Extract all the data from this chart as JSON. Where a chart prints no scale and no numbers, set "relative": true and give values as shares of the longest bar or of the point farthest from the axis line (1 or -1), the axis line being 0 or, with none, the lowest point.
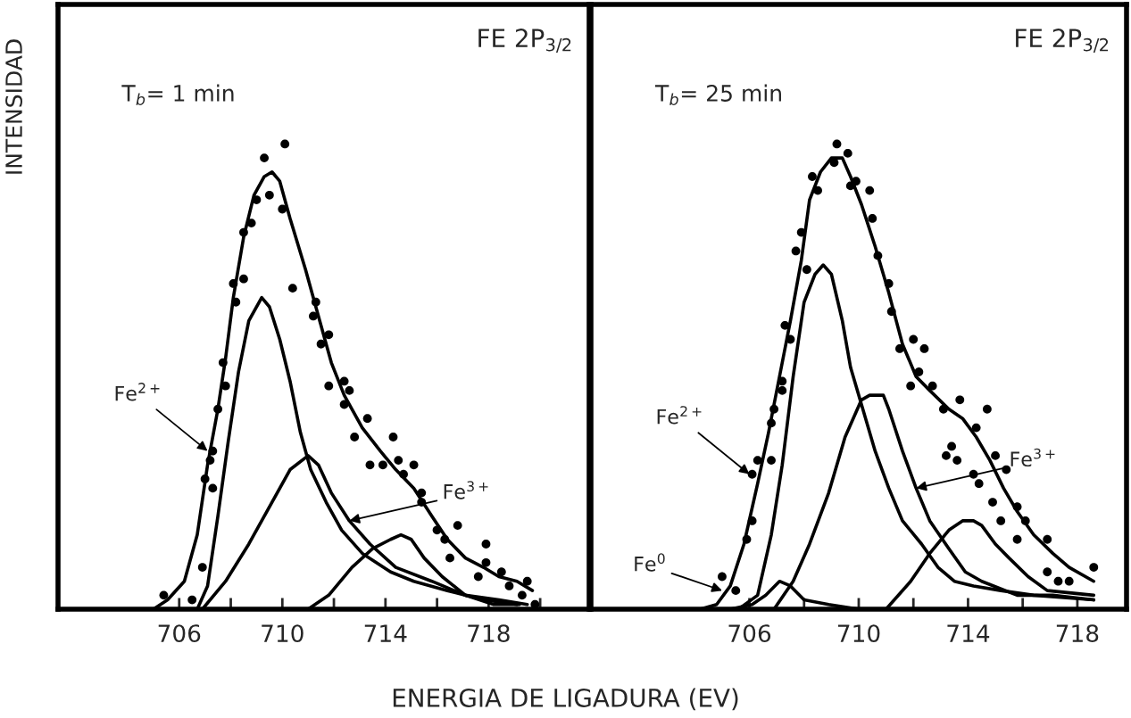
{
  "chart_data": [
    {
      "type": "line",
      "title": "FE 2P$_{3/2}$",
      "xlabel": "ENERGIA DE LIGADURA (EV)",
      "ylabel": "INTENSIDAD",
      "relative": true,
      "xlim": [
        701.3,
        721.9
      ],
      "xticks": [
        706,
        {
          "value": 708,
          "label": null
        },
        710,
        {
          "value": 712,
          "label": null
        },
        714,
        {
          "value": 716,
          "label": null
        },
        718,
        {
          "value": 720,
          "label": null
        }
      ],
      "annotations": [
        "T$_{b}$= 1 min",
        {
          "text": "Fe$^{2+}$",
          "x": 707.1,
          "y": 0.34
        },
        {
          "text": "Fe$^{3+}$",
          "x": 712.6,
          "y": 0.19
        }
      ],
      "series": [
        {
          "type": "scatter",
          "marker": "circle",
          "color": "#000000",
          "x": [
            705.4,
            706.5,
            706.9,
            707.0,
            707.3,
            707.2,
            707.3,
            707.5,
            707.7,
            707.8,
            708.1,
            708.2,
            708.5,
            708.5,
            708.8,
            709.0,
            709.5,
            709.3,
            710.1,
            710.0,
            710.4,
            711.3,
            711.2,
            711.5,
            711.8,
            711.8,
            712.4,
            712.6,
            712.4,
            712.8,
            713.3,
            713.4,
            713.9,
            714.3,
            714.5,
            714.7,
            715.1,
            715.4,
            715.4,
            716.0,
            716.3,
            716.8,
            716.5,
            717.6,
            717.9,
            717.9,
            718.5,
            718.8,
            719.5,
            719.3,
            719.8
          ],
          "values": [
            0.03,
            0.02,
            0.09,
            0.28,
            0.26,
            0.32,
            0.34,
            0.43,
            0.53,
            0.48,
            0.7,
            0.66,
            0.71,
            0.81,
            0.83,
            0.88,
            0.89,
            0.97,
            1.0,
            0.86,
            0.69,
            0.66,
            0.63,
            0.57,
            0.59,
            0.48,
            0.49,
            0.47,
            0.44,
            0.37,
            0.41,
            0.31,
            0.31,
            0.37,
            0.32,
            0.29,
            0.31,
            0.25,
            0.23,
            0.17,
            0.15,
            0.18,
            0.11,
            0.07,
            0.14,
            0.1,
            0.08,
            0.05,
            0.06,
            0.03,
            0.01
          ]
        },
        {
          "color": "#000000",
          "x": [
            705.0,
            705.55,
            706.2,
            706.7,
            707.1,
            707.5,
            707.8,
            708.1,
            708.5,
            708.9,
            709.3,
            709.6,
            709.9,
            710.3,
            710.9,
            711.4,
            711.9,
            712.4,
            713.1,
            713.8,
            714.4,
            715.1,
            715.8,
            716.4,
            717.1,
            717.8,
            718.4,
            719.1,
            719.7
          ],
          "values": [
            0,
            0.02,
            0.06,
            0.16,
            0.31,
            0.43,
            0.54,
            0.67,
            0.8,
            0.89,
            0.93,
            0.94,
            0.92,
            0.84,
            0.73,
            0.63,
            0.53,
            0.46,
            0.39,
            0.34,
            0.3,
            0.26,
            0.2,
            0.15,
            0.11,
            0.09,
            0.07,
            0.06,
            0.04
          ]
        },
        {
          "color": "#000000",
          "x": [
            706.7,
            707.1,
            707.5,
            707.9,
            708.3,
            708.7,
            709.2,
            709.5,
            709.9,
            710.3,
            710.7,
            711.1,
            711.7,
            712.3,
            713.1,
            714.2,
            715.1,
            716.4,
            717.8,
            719.1
          ],
          "values": [
            0,
            0.05,
            0.2,
            0.36,
            0.51,
            0.62,
            0.67,
            0.65,
            0.58,
            0.49,
            0.38,
            0.3,
            0.23,
            0.17,
            0.12,
            0.08,
            0.06,
            0.04,
            0.02,
            0.01
          ]
        },
        {
          "color": "#000000",
          "x": [
            706.9,
            707.8,
            708.7,
            709.7,
            710.3,
            711.0,
            711.4,
            711.9,
            712.6,
            713.4,
            714.4,
            715.8,
            717.1,
            718.4,
            719.5
          ],
          "values": [
            0,
            0.06,
            0.14,
            0.24,
            0.3,
            0.33,
            0.31,
            0.25,
            0.19,
            0.14,
            0.09,
            0.06,
            0.03,
            0.02,
            0.01
          ]
        },
        {
          "color": "#000000",
          "x": [
            711.0,
            711.8,
            712.7,
            713.5,
            714.2,
            714.6,
            715.0,
            715.5,
            716.2,
            717.1,
            718.2,
            719.2
          ],
          "values": [
            0,
            0.03,
            0.09,
            0.13,
            0.15,
            0.16,
            0.15,
            0.11,
            0.07,
            0.03,
            0.01,
            0.01
          ]
        }
      ]
    },
    {
      "type": "line",
      "title": "FE 2P$_{3/2}$",
      "relative": true,
      "xlim": [
        700.2,
        719.8
      ],
      "xticks": [
        706,
        {
          "value": 708,
          "label": null
        },
        710,
        {
          "value": 712,
          "label": null
        },
        714,
        {
          "value": 716,
          "label": null
        },
        718
      ],
      "annotations": [
        "T$_{b}$= 25 min",
        {
          "text": "Fe$^{2+}$",
          "x": 706.0,
          "y": 0.29
        },
        {
          "text": "Fe$^{3+}$",
          "x": 712.1,
          "y": 0.26
        },
        {
          "text": "Fe$^{0}$",
          "x": 705.0,
          "y": 0.04
        }
      ],
      "series": [
        {
          "type": "scatter",
          "marker": "circle",
          "color": "#000000",
          "x": [
            705.0,
            705.5,
            705.9,
            706.1,
            706.1,
            706.3,
            706.8,
            706.8,
            706.9,
            707.2,
            707.2,
            707.5,
            707.3,
            707.7,
            707.9,
            708.1,
            708.3,
            708.5,
            709.1,
            709.2,
            709.6,
            709.7,
            709.9,
            710.4,
            710.5,
            710.7,
            711.1,
            711.2,
            711.5,
            712.0,
            712.4,
            711.9,
            712.2,
            712.7,
            713.1,
            713.7,
            714.7,
            714.3,
            713.4,
            713.2,
            713.6,
            714.2,
            714.4,
            715.0,
            715.4,
            714.9,
            715.2,
            715.8,
            716.1,
            715.8,
            716.9,
            716.9,
            717.3,
            717.7,
            718.6
          ],
          "values": [
            0.07,
            0.04,
            0.15,
            0.19,
            0.29,
            0.32,
            0.32,
            0.4,
            0.43,
            0.47,
            0.49,
            0.58,
            0.61,
            0.77,
            0.81,
            0.73,
            0.93,
            0.9,
            0.96,
            1.0,
            0.98,
            0.91,
            0.92,
            0.9,
            0.84,
            0.76,
            0.7,
            0.64,
            0.56,
            0.58,
            0.56,
            0.48,
            0.51,
            0.48,
            0.43,
            0.45,
            0.43,
            0.39,
            0.35,
            0.33,
            0.32,
            0.29,
            0.27,
            0.33,
            0.3,
            0.23,
            0.19,
            0.22,
            0.19,
            0.15,
            0.15,
            0.08,
            0.06,
            0.06,
            0.09
          ]
        },
        {
          "color": "#000000",
          "x": [
            704.2,
            704.8,
            705.3,
            705.8,
            706.3,
            706.7,
            707.1,
            707.5,
            707.9,
            708.2,
            708.6,
            709.0,
            709.4,
            709.7,
            710.1,
            710.6,
            711.1,
            711.6,
            712.1,
            712.6,
            713.3,
            713.8,
            714.3,
            714.8,
            715.3,
            715.8,
            716.4,
            717.1,
            717.7,
            718.6
          ],
          "values": [
            0,
            0.01,
            0.05,
            0.14,
            0.27,
            0.38,
            0.5,
            0.62,
            0.75,
            0.88,
            0.94,
            0.97,
            0.97,
            0.93,
            0.87,
            0.78,
            0.68,
            0.57,
            0.5,
            0.47,
            0.43,
            0.41,
            0.37,
            0.32,
            0.26,
            0.21,
            0.16,
            0.12,
            0.09,
            0.06
          ]
        },
        {
          "color": "#000000",
          "x": [
            705.6,
            706.3,
            706.8,
            707.2,
            707.6,
            708.0,
            708.4,
            708.7,
            709.0,
            709.4,
            709.7,
            710.1,
            710.6,
            711.1,
            711.6,
            712.3,
            712.9,
            713.5,
            714.2,
            715.2,
            716.4,
            718.6
          ],
          "values": [
            0,
            0.03,
            0.16,
            0.31,
            0.5,
            0.66,
            0.72,
            0.74,
            0.72,
            0.62,
            0.52,
            0.44,
            0.34,
            0.26,
            0.19,
            0.14,
            0.09,
            0.06,
            0.05,
            0.04,
            0.03,
            0.02
          ]
        },
        {
          "color": "#000000",
          "x": [
            706.9,
            707.6,
            708.2,
            708.9,
            709.5,
            710.1,
            710.4,
            710.9,
            711.1,
            711.6,
            712.1,
            712.6,
            713.3,
            713.9,
            714.5,
            715.8,
            717.1,
            718.6
          ],
          "values": [
            0,
            0.06,
            0.14,
            0.25,
            0.37,
            0.45,
            0.46,
            0.46,
            0.43,
            0.34,
            0.26,
            0.19,
            0.13,
            0.08,
            0.06,
            0.03,
            0.03,
            0.02
          ]
        },
        {
          "color": "#000000",
          "x": [
            711.0,
            711.9,
            712.6,
            713.3,
            713.8,
            714.2,
            714.5,
            715.0,
            715.5,
            716.2,
            716.9,
            718.6
          ],
          "values": [
            0,
            0.06,
            0.12,
            0.17,
            0.19,
            0.19,
            0.18,
            0.14,
            0.11,
            0.07,
            0.04,
            0.03
          ]
        },
        {
          "color": "#000000",
          "x": [
            705.3,
            706.1,
            706.6,
            707.1,
            707.5,
            708.0,
            708.9,
            710.0
          ],
          "values": [
            0,
            0.01,
            0.03,
            0.06,
            0.05,
            0.02,
            0.01,
            0
          ]
        }
      ]
    }
  ]
}
